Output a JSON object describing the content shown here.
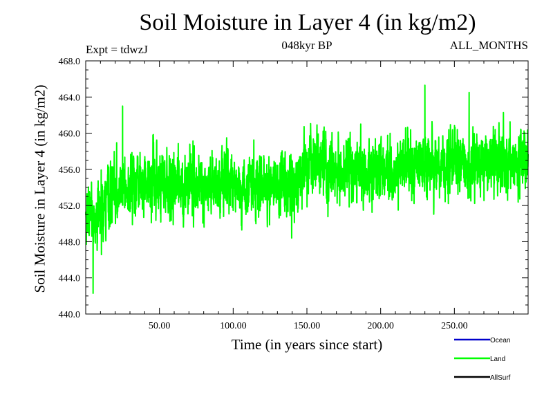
{
  "chart_data": {
    "type": "line",
    "title": "Soil Moisture in Layer 4 (in kg/m2)",
    "subtitle": "048kyr BP",
    "experiment": "Expt = tdwzJ",
    "period": "ALL_MONTHS",
    "xlabel": "Time (in years since start)",
    "ylabel": "Soil Moisture in Layer 4 (in kg/m2)",
    "xlim": [
      0,
      300
    ],
    "ylim": [
      440,
      468
    ],
    "x_ticks": [
      50,
      100,
      150,
      200,
      250
    ],
    "x_tick_labels": [
      "50.00",
      "100.00",
      "150.00",
      "200.00",
      "250.00"
    ],
    "y_ticks": [
      440,
      444,
      448,
      452,
      456,
      460,
      464,
      468
    ],
    "y_tick_labels": [
      "440.0",
      "444.0",
      "448.0",
      "452.0",
      "456.0",
      "460.0",
      "464.0",
      "468.0"
    ],
    "legend": [
      {
        "name": "Ocean",
        "color": "#0000cc"
      },
      {
        "name": "Land",
        "color": "#00ff00"
      },
      {
        "name": "AllSurf",
        "color": "#000000"
      }
    ],
    "series": [
      {
        "name": "Land",
        "color": "#00ff00",
        "x_start": 0,
        "x_end": 300,
        "trend_x": [
          0,
          5,
          15,
          40,
          100,
          145,
          150,
          200,
          230,
          260,
          300
        ],
        "trend_y": [
          451.5,
          450.5,
          453,
          454.5,
          454.3,
          454.3,
          456.2,
          455.5,
          456.8,
          456.4,
          456.8
        ],
        "noise_std": 2.3,
        "notable_peaks": [
          {
            "x": 25,
            "y": 463.0
          },
          {
            "x": 230,
            "y": 465.3
          },
          {
            "x": 260,
            "y": 464.5
          },
          {
            "x": 5,
            "y": 442.3
          }
        ]
      }
    ]
  }
}
